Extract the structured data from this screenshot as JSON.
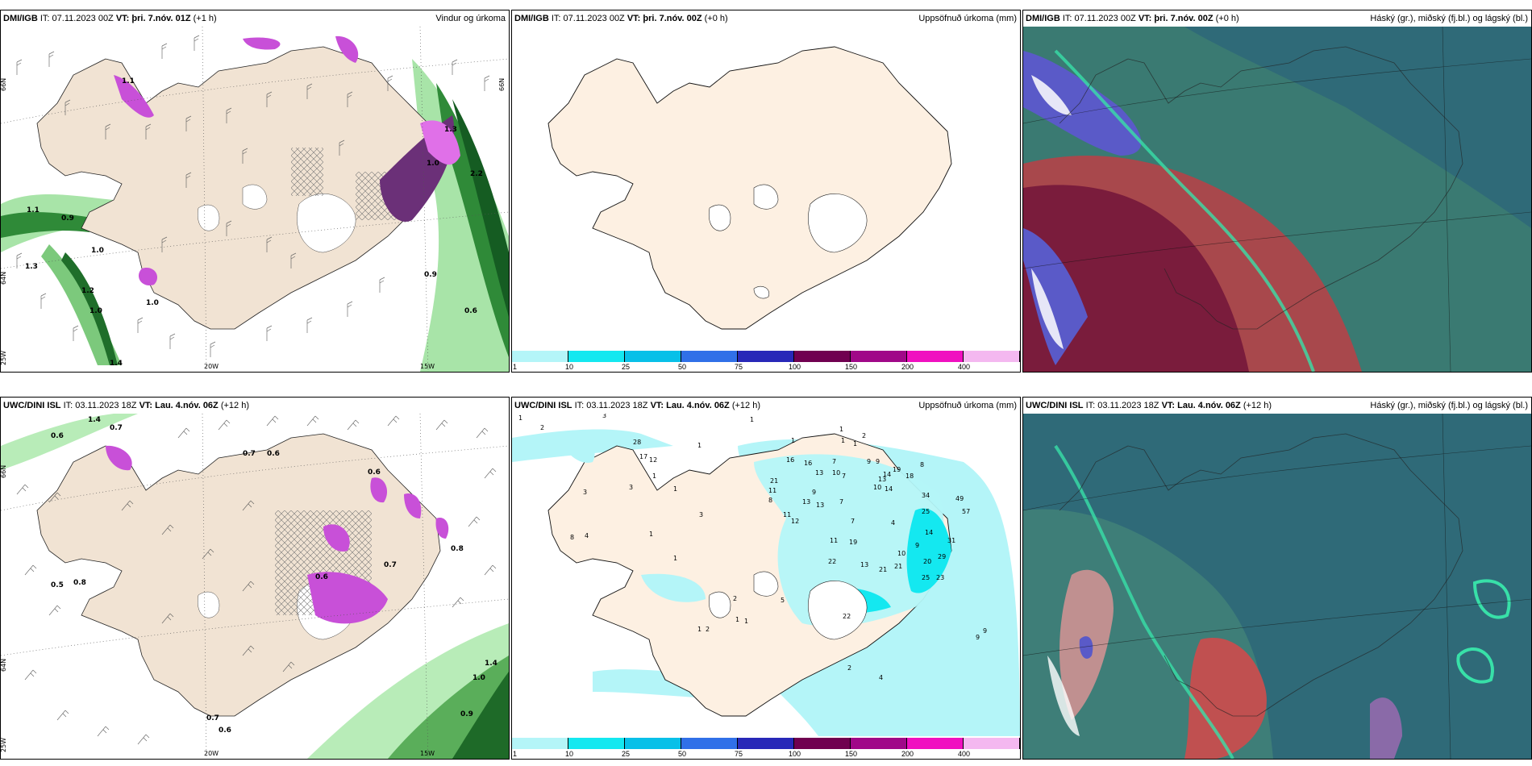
{
  "panels": [
    {
      "source": "DMI/IGB",
      "it_label": "IT:",
      "it": "07.11.2023 00Z",
      "vt_label": "VT:",
      "vt": "þri. 7.nóv. 01Z",
      "lead": "(+1 h)",
      "desc": "Vindur og úrkoma"
    },
    {
      "source": "DMI/IGB",
      "it_label": "IT:",
      "it": "07.11.2023 00Z",
      "vt_label": "VT:",
      "vt": "þri. 7.nóv. 00Z",
      "lead": "(+0 h)",
      "desc": "Uppsöfnuð úrkoma (mm)"
    },
    {
      "source": "DMI/IGB",
      "it_label": "IT:",
      "it": "07.11.2023 00Z",
      "vt_label": "VT:",
      "vt": "þri. 7.nóv. 00Z",
      "lead": "(+0 h)",
      "desc": "Háský (gr.), miðský (fj.bl.) og lágský (bl.)"
    },
    {
      "source": "UWC/DINI ISL",
      "it_label": "IT:",
      "it": "03.11.2023 18Z",
      "vt_label": "VT:",
      "vt": "Lau. 4.nóv. 06Z",
      "lead": "(+12 h)",
      "desc": ""
    },
    {
      "source": "UWC/DINI ISL",
      "it_label": "IT:",
      "it": "03.11.2023 18Z",
      "vt_label": "VT:",
      "vt": "Lau. 4.nóv. 06Z",
      "lead": "(+12 h)",
      "desc": "Uppsöfnuð úrkoma (mm)"
    },
    {
      "source": "UWC/DINI ISL",
      "it_label": "IT:",
      "it": "03.11.2023 18Z",
      "vt_label": "VT:",
      "vt": "Lau. 4.nóv. 06Z",
      "lead": "(+12 h)",
      "desc": "Háský (gr.), miðský (fj.bl.) og lágský (bl.)"
    }
  ],
  "colorbar": {
    "ticks": [
      "1",
      "10",
      "25",
      "50",
      "75",
      "100",
      "150",
      "200",
      "400"
    ],
    "colors": [
      "#b4f5f8",
      "#14e8f0",
      "#08c0e8",
      "#3070e8",
      "#2828b8",
      "#700050",
      "#a00888",
      "#f010c0",
      "#f4b8f0"
    ]
  },
  "axis": {
    "lat66": "66N",
    "lat64": "64N",
    "lat65": "65N",
    "lon20": "20W",
    "lon15": "15W",
    "lon25": "25W"
  },
  "wind_labels_top": [
    "1.1",
    "0.9",
    "1.0",
    "1.3",
    "1.2",
    "1.0",
    "1.1",
    "1.0",
    "1.3",
    "2.2",
    "0.9",
    "0.6",
    "1.0",
    "1.4"
  ],
  "wind_labels_bottom": [
    "1.4",
    "0.6",
    "0.7",
    "0.7",
    "0.6",
    "0.6",
    "0.5",
    "0.8",
    "0.8",
    "0.6",
    "0.7",
    "1.0",
    "0.9",
    "1.4",
    "0.7",
    "0.6"
  ],
  "precip_numbers": [
    "1",
    "2",
    "3",
    "1",
    "1",
    "1",
    "1",
    "1",
    "2",
    "1",
    "16",
    "16",
    "13",
    "10",
    "7",
    "9",
    "9",
    "14",
    "19",
    "18",
    "8",
    "21",
    "11",
    "8",
    "13",
    "13",
    "9",
    "7",
    "10",
    "7",
    "14",
    "13",
    "34",
    "49",
    "11",
    "12",
    "7",
    "4",
    "25",
    "57",
    "14",
    "31",
    "11",
    "19",
    "9",
    "21",
    "13",
    "22",
    "21",
    "10",
    "20",
    "29",
    "25",
    "23",
    "2",
    "5",
    "9",
    "1",
    "1",
    "2",
    "4",
    "9",
    "8",
    "4",
    "3",
    "3",
    "12",
    "17",
    "28",
    "22",
    "1",
    "1",
    "1",
    "1",
    "2",
    "3",
    "1"
  ]
}
